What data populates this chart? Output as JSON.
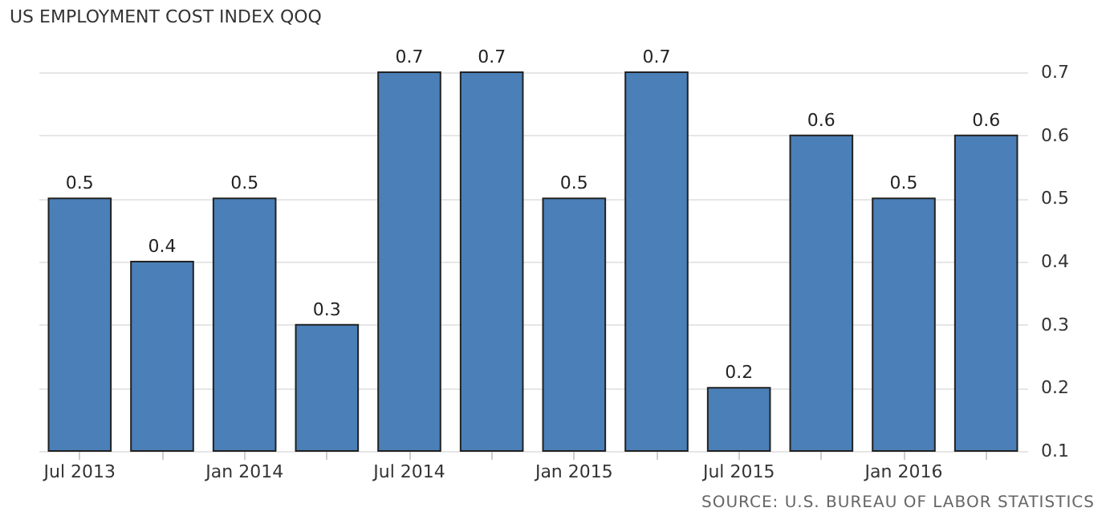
{
  "chart_data": {
    "type": "bar",
    "title": "US EMPLOYMENT COST INDEX QOQ",
    "categories": [
      "Jul 2013",
      null,
      "Jan 2014",
      null,
      "Jul 2014",
      null,
      "Jan 2015",
      null,
      "Jul 2015",
      null,
      "Jan 2016",
      null
    ],
    "values": [
      0.5,
      0.4,
      0.5,
      0.3,
      0.7,
      0.7,
      0.5,
      0.7,
      0.2,
      0.6,
      0.5,
      0.6
    ],
    "color": "#4a7fb8",
    "ylim": [
      0.1,
      0.7
    ],
    "yticks": [
      0.1,
      0.2,
      0.3,
      0.4,
      0.5,
      0.6,
      0.7
    ],
    "grid": "y",
    "data_labels": true,
    "annotations": [
      "SOURCE: U.S. BUREAU OF LABOR STATISTICS"
    ]
  }
}
